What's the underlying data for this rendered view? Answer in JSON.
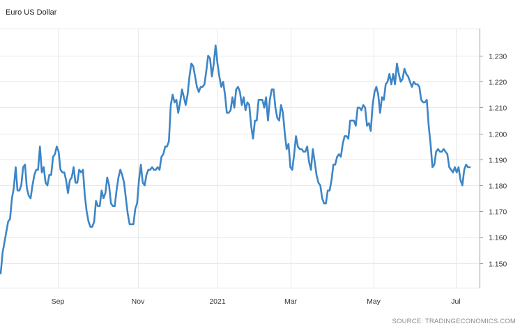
{
  "chart_data": {
    "type": "line",
    "title": "Euro US Dollar",
    "source": "SOURCE: TRADINGECONOMICS.COM",
    "xlabel": "",
    "ylabel": "",
    "x_ticks": [
      "Sep",
      "Nov",
      "2021",
      "Mar",
      "May",
      "Jul"
    ],
    "y_ticks": [
      "1.150",
      "1.160",
      "1.170",
      "1.180",
      "1.190",
      "1.200",
      "1.210",
      "1.220",
      "1.230"
    ],
    "ylim": [
      1.1405,
      1.2405
    ],
    "grid": true,
    "series_color": "#3d85c6",
    "series": [
      {
        "name": "",
        "values": [
          1.146,
          1.154,
          1.158,
          1.162,
          1.166,
          1.167,
          1.175,
          1.179,
          1.187,
          1.178,
          1.178,
          1.18,
          1.187,
          1.188,
          1.179,
          1.176,
          1.175,
          1.18,
          1.184,
          1.186,
          1.186,
          1.195,
          1.185,
          1.187,
          1.181,
          1.18,
          1.184,
          1.184,
          1.191,
          1.192,
          1.195,
          1.193,
          1.186,
          1.185,
          1.185,
          1.182,
          1.177,
          1.182,
          1.183,
          1.187,
          1.181,
          1.181,
          1.186,
          1.185,
          1.186,
          1.176,
          1.17,
          1.166,
          1.164,
          1.164,
          1.166,
          1.174,
          1.172,
          1.172,
          1.178,
          1.175,
          1.177,
          1.183,
          1.18,
          1.173,
          1.172,
          1.172,
          1.178,
          1.183,
          1.186,
          1.184,
          1.181,
          1.175,
          1.169,
          1.165,
          1.165,
          1.165,
          1.171,
          1.173,
          1.182,
          1.188,
          1.181,
          1.18,
          1.184,
          1.186,
          1.186,
          1.187,
          1.186,
          1.186,
          1.187,
          1.186,
          1.191,
          1.192,
          1.195,
          1.195,
          1.197,
          1.211,
          1.215,
          1.212,
          1.213,
          1.208,
          1.212,
          1.217,
          1.214,
          1.211,
          1.215,
          1.222,
          1.227,
          1.226,
          1.222,
          1.218,
          1.216,
          1.218,
          1.218,
          1.219,
          1.224,
          1.23,
          1.229,
          1.222,
          1.227,
          1.234,
          1.227,
          1.222,
          1.218,
          1.22,
          1.215,
          1.208,
          1.208,
          1.209,
          1.214,
          1.21,
          1.217,
          1.218,
          1.216,
          1.211,
          1.214,
          1.209,
          1.212,
          1.211,
          1.203,
          1.198,
          1.205,
          1.205,
          1.213,
          1.213,
          1.213,
          1.21,
          1.214,
          1.205,
          1.213,
          1.217,
          1.217,
          1.21,
          1.206,
          1.205,
          1.211,
          1.208,
          1.2,
          1.194,
          1.196,
          1.187,
          1.186,
          1.192,
          1.199,
          1.195,
          1.194,
          1.194,
          1.193,
          1.193,
          1.195,
          1.189,
          1.186,
          1.194,
          1.189,
          1.184,
          1.181,
          1.18,
          1.175,
          1.173,
          1.173,
          1.178,
          1.178,
          1.182,
          1.188,
          1.188,
          1.191,
          1.192,
          1.191,
          1.196,
          1.199,
          1.199,
          1.198,
          1.205,
          1.205,
          1.205,
          1.203,
          1.21,
          1.21,
          1.209,
          1.211,
          1.21,
          1.203,
          1.204,
          1.201,
          1.211,
          1.216,
          1.218,
          1.215,
          1.208,
          1.214,
          1.213,
          1.219,
          1.22,
          1.223,
          1.219,
          1.223,
          1.219,
          1.227,
          1.223,
          1.22,
          1.221,
          1.225,
          1.223,
          1.222,
          1.22,
          1.218,
          1.22,
          1.219,
          1.219,
          1.218,
          1.213,
          1.212,
          1.212,
          1.213,
          1.203,
          1.196,
          1.187,
          1.188,
          1.193,
          1.194,
          1.193,
          1.193,
          1.194,
          1.193,
          1.192,
          1.187,
          1.186,
          1.185,
          1.187,
          1.185,
          1.187,
          1.182,
          1.18,
          1.186,
          1.188,
          1.187,
          1.187
        ]
      }
    ]
  }
}
